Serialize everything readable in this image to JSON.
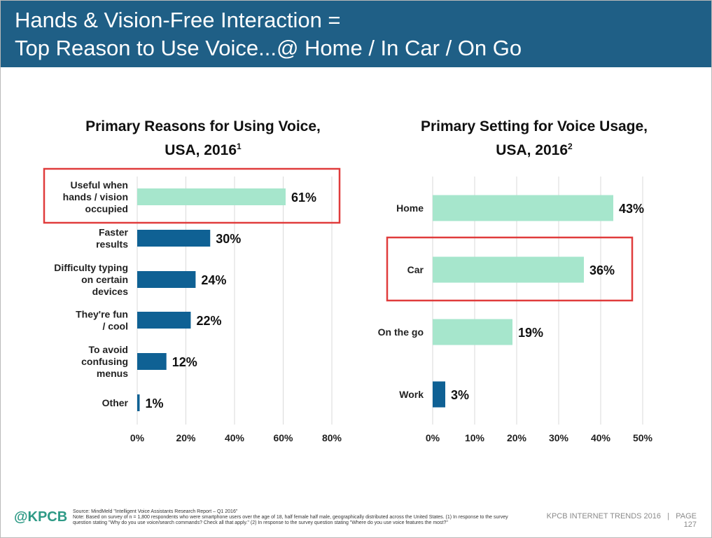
{
  "header": {
    "title_line1": "Hands & Vision-Free Interaction =",
    "title_line2": "Top Reason to Use Voice...@ Home / In Car / On Go"
  },
  "colors": {
    "header_bg": "#1f5f86",
    "highlight_bar": "#a6e6cc",
    "default_bar": "#0f6194",
    "callout_border": "#e03c3c",
    "logo": "#2e9a86"
  },
  "chart_data": [
    {
      "type": "bar",
      "orientation": "horizontal",
      "title": "Primary Reasons for Using Voice, USA, 2016",
      "title_line1": "Primary Reasons for Using Voice,",
      "title_line2": "USA, 2016",
      "title_sup": "1",
      "categories": [
        "Useful when hands / vision occupied",
        "Faster results",
        "Difficulty typing on certain devices",
        "They're fun / cool",
        "To avoid confusing menus",
        "Other"
      ],
      "category_lines": [
        [
          "Useful when",
          "hands / vision",
          "occupied"
        ],
        [
          "Faster",
          "results"
        ],
        [
          "Difficulty typing",
          "on certain",
          "devices"
        ],
        [
          "They're fun",
          "/ cool"
        ],
        [
          "To avoid",
          "confusing",
          "menus"
        ],
        [
          "Other"
        ]
      ],
      "values": [
        61,
        30,
        24,
        22,
        12,
        1
      ],
      "value_labels": [
        "61%",
        "30%",
        "24%",
        "22%",
        "12%",
        "1%"
      ],
      "highlighted": [
        true,
        false,
        false,
        false,
        false,
        false
      ],
      "xlim": [
        0,
        80
      ],
      "ticks": [
        "0%",
        "20%",
        "40%",
        "60%",
        "80%"
      ],
      "tick_values": [
        0,
        20,
        40,
        60,
        80
      ],
      "grid": true,
      "callout_index": 0
    },
    {
      "type": "bar",
      "orientation": "horizontal",
      "title": "Primary Setting for Voice Usage, USA, 2016",
      "title_line1": "Primary Setting for Voice Usage,",
      "title_line2": "USA, 2016",
      "title_sup": "2",
      "categories": [
        "Home",
        "Car",
        "On the go",
        "Work"
      ],
      "category_lines": [
        [
          "Home"
        ],
        [
          "Car"
        ],
        [
          "On the go"
        ],
        [
          "Work"
        ]
      ],
      "values": [
        43,
        36,
        19,
        3
      ],
      "value_labels": [
        "43%",
        "36%",
        "19%",
        "3%"
      ],
      "highlighted": [
        true,
        true,
        true,
        false
      ],
      "xlim": [
        0,
        50
      ],
      "ticks": [
        "0%",
        "10%",
        "20%",
        "30%",
        "40%",
        "50%"
      ],
      "tick_values": [
        0,
        10,
        20,
        30,
        40,
        50
      ],
      "grid": true,
      "callout_index": 1
    }
  ],
  "footer": {
    "logo": "@KPCB",
    "source": "Source: MindMeld \"Intelligent Voice Assistants Research Report – Q1 2016\"",
    "note": "Note: Based on survey of n = 1,800 respondents who were smartphone users over the age of 18, half female half male, geographically distributed across the United States. (1) In response to the survey question stating \"Why do you use voice/search commands? Check all that apply.\" (2) In response to the survey question stating \"Where do you use voice features the most?\"",
    "report": "KPCB INTERNET TRENDS 2016",
    "separator": "|",
    "page_label": "PAGE",
    "page_number": "127"
  }
}
